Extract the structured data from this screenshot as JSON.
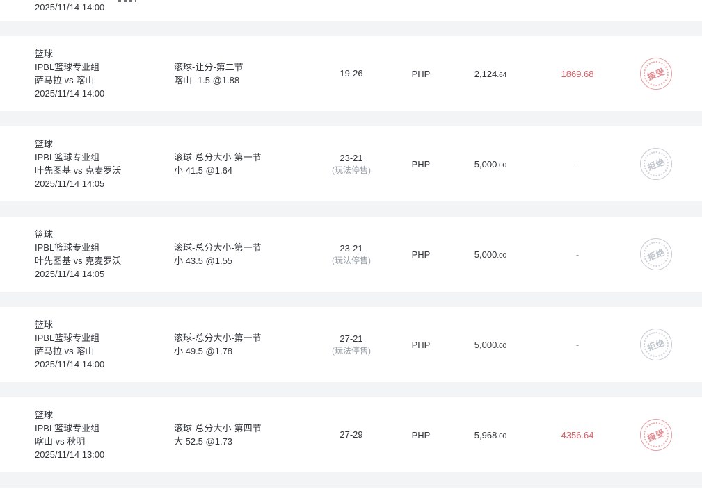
{
  "page": {
    "background_color": "#f3f4f6",
    "row_color": "#ffffff",
    "text_color": "#30353b",
    "muted_color": "#9aa1a9",
    "red_color": "#d75f66",
    "stamp_red_color": "#e8a0a4",
    "stamp_gray_color": "#c8cdd4"
  },
  "partial_row": {
    "datetime": "2025/11/14 14:00"
  },
  "rows": [
    {
      "sport": "篮球",
      "league": "IPBL篮球专业组",
      "teams": "萨马拉 vs 喀山",
      "datetime": "2025/11/14 14:00",
      "market": "滚球-让分-第二节",
      "selection": "喀山 -1.5 @1.88",
      "score": "19-26",
      "status": "",
      "currency": "PHP",
      "amount_main": "2,124",
      "amount_dec": ".64",
      "result": "1869.68",
      "result_is_win": true,
      "stamp": "接受",
      "stamp_type": "accepted"
    },
    {
      "sport": "篮球",
      "league": "IPBL篮球专业组",
      "teams": "叶先图基 vs 克麦罗沃",
      "datetime": "2025/11/14 14:05",
      "market": "滚球-总分大小-第一节",
      "selection": "小 41.5 @1.64",
      "score": "23-21",
      "status": "(玩法停售)",
      "currency": "PHP",
      "amount_main": "5,000",
      "amount_dec": ".00",
      "result": "-",
      "result_is_win": false,
      "stamp": "拒绝",
      "stamp_type": "rejected"
    },
    {
      "sport": "篮球",
      "league": "IPBL篮球专业组",
      "teams": "叶先图基 vs 克麦罗沃",
      "datetime": "2025/11/14 14:05",
      "market": "滚球-总分大小-第一节",
      "selection": "小 43.5 @1.55",
      "score": "23-21",
      "status": "(玩法停售)",
      "currency": "PHP",
      "amount_main": "5,000",
      "amount_dec": ".00",
      "result": "-",
      "result_is_win": false,
      "stamp": "拒绝",
      "stamp_type": "rejected"
    },
    {
      "sport": "篮球",
      "league": "IPBL篮球专业组",
      "teams": "萨马拉 vs 喀山",
      "datetime": "2025/11/14 14:00",
      "market": "滚球-总分大小-第一节",
      "selection": "小 49.5 @1.78",
      "score": "27-21",
      "status": "(玩法停售)",
      "currency": "PHP",
      "amount_main": "5,000",
      "amount_dec": ".00",
      "result": "-",
      "result_is_win": false,
      "stamp": "拒绝",
      "stamp_type": "rejected"
    },
    {
      "sport": "篮球",
      "league": "IPBL篮球专业组",
      "teams": "喀山 vs 秋明",
      "datetime": "2025/11/14 13:00",
      "market": "滚球-总分大小-第四节",
      "selection": "大 52.5 @1.73",
      "score": "27-29",
      "status": "",
      "currency": "PHP",
      "amount_main": "5,968",
      "amount_dec": ".00",
      "result": "4356.64",
      "result_is_win": true,
      "stamp": "接受",
      "stamp_type": "accepted"
    }
  ]
}
